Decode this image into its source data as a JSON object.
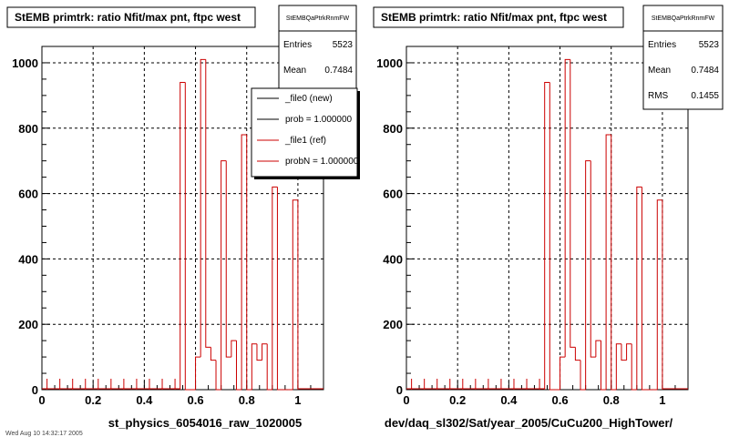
{
  "footer_text": "Wed Aug 10 14:32:17 2005",
  "chart_data": [
    {
      "type": "histogram",
      "title": "StEMB primtrk: ratio Nfit/max pnt, ftpc west",
      "xlabel": "st_physics_6054016_raw_1020005",
      "ylabel": "",
      "xlim": [
        0,
        1.1
      ],
      "ylim": [
        0,
        1050
      ],
      "xticks": [
        0,
        0.2,
        0.4,
        0.6,
        0.8,
        1
      ],
      "xtick_labels": [
        "0",
        "0.2",
        "0.4",
        "0.6",
        "0.8",
        "1"
      ],
      "yticks": [
        0,
        200,
        400,
        600,
        800,
        1000
      ],
      "ytick_labels": [
        "0",
        "200",
        "400",
        "600",
        "800",
        "1000"
      ],
      "grid": true,
      "stats": {
        "name": "StEMBQaPtrkRnmFW",
        "rows": [
          {
            "label": "Entries",
            "value": "5523"
          },
          {
            "label": "Mean",
            "value": "0.7484"
          }
        ]
      },
      "legend": {
        "placement": "top-right",
        "entries": [
          {
            "label": "_file0 (new)",
            "color": "#000000"
          },
          {
            "label": "prob = 1.000000",
            "color": "#000000"
          },
          {
            "label": "_file1 (ref)",
            "color": "#cc0000"
          },
          {
            "label": "probN = 1.000000",
            "color": "#cc0000"
          }
        ]
      },
      "series": [
        {
          "color": "#cc0000",
          "bin_width": 0.02,
          "edges": [
            0.54,
            0.56,
            0.58,
            0.6,
            0.62,
            0.64,
            0.66,
            0.68,
            0.7,
            0.72,
            0.74,
            0.76,
            0.78,
            0.8,
            0.82,
            0.84,
            0.86,
            0.88,
            0.9,
            0.92,
            0.94,
            0.96,
            0.98,
            1.0
          ],
          "values": [
            940,
            0,
            0,
            100,
            1010,
            130,
            90,
            0,
            700,
            100,
            150,
            0,
            780,
            0,
            140,
            90,
            140,
            0,
            620,
            0,
            0,
            0,
            580
          ]
        }
      ]
    },
    {
      "type": "histogram",
      "title": "StEMB primtrk: ratio Nfit/max pnt, ftpc west",
      "xlabel": "dev/daq_sl302/Sat/year_2005/CuCu200_HighTower/",
      "ylabel": "",
      "xlim": [
        0,
        1.1
      ],
      "ylim": [
        0,
        1050
      ],
      "xticks": [
        0,
        0.2,
        0.4,
        0.6,
        0.8,
        1
      ],
      "xtick_labels": [
        "0",
        "0.2",
        "0.4",
        "0.6",
        "0.8",
        "1"
      ],
      "yticks": [
        0,
        200,
        400,
        600,
        800,
        1000
      ],
      "ytick_labels": [
        "0",
        "200",
        "400",
        "600",
        "800",
        "1000"
      ],
      "grid": true,
      "stats": {
        "name": "StEMBQaPtrkRnmFW",
        "rows": [
          {
            "label": "Entries",
            "value": "5523"
          },
          {
            "label": "Mean",
            "value": "0.7484"
          },
          {
            "label": "RMS",
            "value": "0.1455"
          }
        ]
      },
      "series": [
        {
          "color": "#cc0000",
          "bin_width": 0.02,
          "edges": [
            0.54,
            0.56,
            0.58,
            0.6,
            0.62,
            0.64,
            0.66,
            0.68,
            0.7,
            0.72,
            0.74,
            0.76,
            0.78,
            0.8,
            0.82,
            0.84,
            0.86,
            0.88,
            0.9,
            0.92,
            0.94,
            0.96,
            0.98,
            1.0
          ],
          "values": [
            940,
            0,
            0,
            100,
            1010,
            130,
            90,
            0,
            700,
            100,
            150,
            0,
            780,
            0,
            140,
            90,
            140,
            0,
            620,
            0,
            0,
            0,
            580
          ]
        }
      ]
    }
  ]
}
